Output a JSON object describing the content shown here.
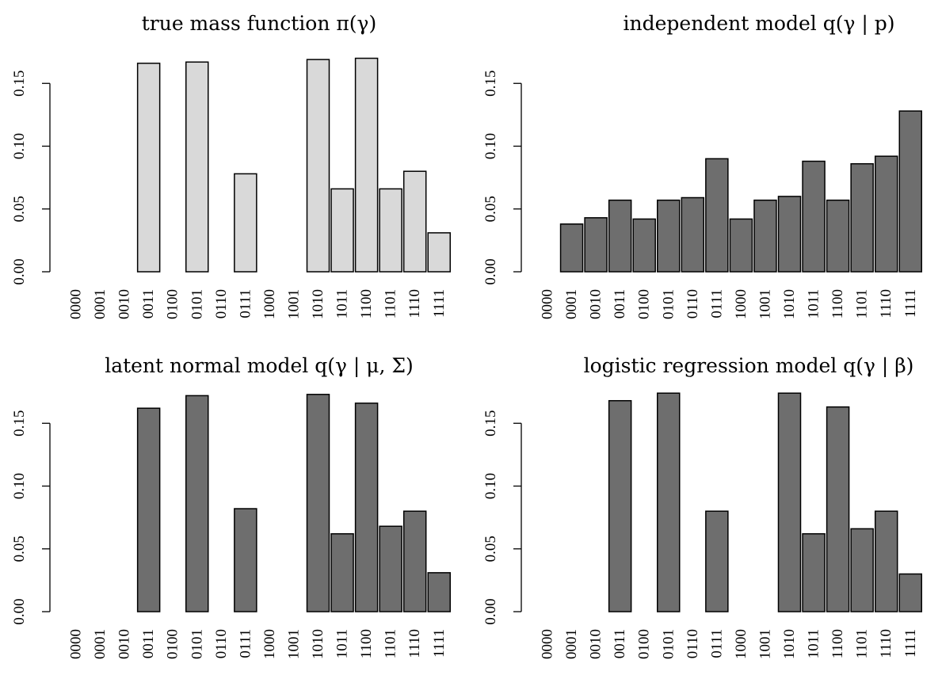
{
  "chart_data": [
    {
      "type": "bar",
      "title": "true mass function π(γ)",
      "categories": [
        "0000",
        "0001",
        "0010",
        "0011",
        "0100",
        "0101",
        "0110",
        "0111",
        "1000",
        "1001",
        "1010",
        "1011",
        "1100",
        "1101",
        "1110",
        "1111"
      ],
      "values": [
        0,
        0,
        0,
        0.166,
        0,
        0.167,
        0,
        0.078,
        0,
        0,
        0.169,
        0.066,
        0.17,
        0.066,
        0.08,
        0.031
      ],
      "xlabel": "",
      "ylabel": "",
      "ylim": [
        0,
        0.17
      ],
      "yticks": [
        "0.00",
        "0.05",
        "0.10",
        "0.15"
      ],
      "bar_color": "#d9d9d9",
      "grid": false
    },
    {
      "type": "bar",
      "title": "independent model q(γ | p)",
      "categories": [
        "0000",
        "0001",
        "0010",
        "0011",
        "0100",
        "0101",
        "0110",
        "0111",
        "1000",
        "1001",
        "1010",
        "1011",
        "1100",
        "1101",
        "1110",
        "1111"
      ],
      "values": [
        0,
        0.038,
        0.043,
        0.057,
        0.042,
        0.057,
        0.059,
        0.09,
        0.042,
        0.057,
        0.06,
        0.088,
        0.057,
        0.086,
        0.092,
        0.128
      ],
      "xlabel": "",
      "ylabel": "",
      "ylim": [
        0,
        0.17
      ],
      "yticks": [
        "0.00",
        "0.05",
        "0.10",
        "0.15"
      ],
      "bar_color": "#6e6e6e",
      "grid": false
    },
    {
      "type": "bar",
      "title": "latent normal model q(γ | μ, Σ)",
      "categories": [
        "0000",
        "0001",
        "0010",
        "0011",
        "0100",
        "0101",
        "0110",
        "0111",
        "1000",
        "1001",
        "1010",
        "1011",
        "1100",
        "1101",
        "1110",
        "1111"
      ],
      "values": [
        0,
        0,
        0,
        0.162,
        0,
        0.172,
        0,
        0.082,
        0,
        0,
        0.173,
        0.062,
        0.166,
        0.068,
        0.08,
        0.031
      ],
      "xlabel": "",
      "ylabel": "",
      "ylim": [
        0,
        0.17
      ],
      "yticks": [
        "0.00",
        "0.05",
        "0.10",
        "0.15"
      ],
      "bar_color": "#6e6e6e",
      "grid": false
    },
    {
      "type": "bar",
      "title": "logistic regression model q(γ | β)",
      "categories": [
        "0000",
        "0001",
        "0010",
        "0011",
        "0100",
        "0101",
        "0110",
        "0111",
        "1000",
        "1001",
        "1010",
        "1011",
        "1100",
        "1101",
        "1110",
        "1111"
      ],
      "values": [
        0,
        0,
        0,
        0.168,
        0,
        0.174,
        0,
        0.08,
        0,
        0,
        0.174,
        0.062,
        0.163,
        0.066,
        0.08,
        0.03
      ],
      "xlabel": "",
      "ylabel": "",
      "ylim": [
        0,
        0.17
      ],
      "yticks": [
        "0.00",
        "0.05",
        "0.10",
        "0.15"
      ],
      "bar_color": "#6e6e6e",
      "grid": false
    }
  ]
}
